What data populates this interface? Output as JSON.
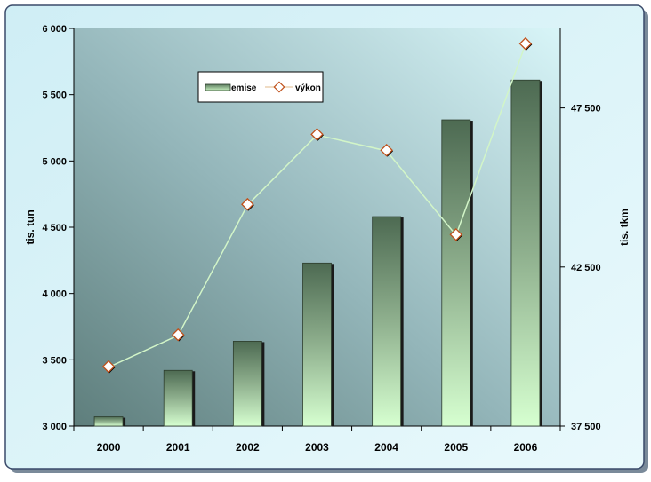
{
  "chart_data": {
    "type": "bar",
    "categories": [
      "2000",
      "2001",
      "2002",
      "2003",
      "2004",
      "2005",
      "2006"
    ],
    "series": [
      {
        "name": "emise",
        "type": "bar",
        "axis": "left",
        "values": [
          3070,
          3420,
          3640,
          4230,
          4580,
          5310,
          5610
        ]
      },
      {
        "name": "výkon",
        "type": "line",
        "axis": "right",
        "values": [
          39350,
          40350,
          44450,
          46650,
          46150,
          43500,
          49500
        ]
      }
    ],
    "ylabel": "tis. tun",
    "ylabel_right": "tis. tkm",
    "ylim": [
      3000,
      6000
    ],
    "ylim_right": [
      37500,
      50000
    ],
    "yticks": [
      "3 000",
      "3 500",
      "4 000",
      "4 500",
      "5 000",
      "5 500",
      "6 000"
    ],
    "yticks_right": [
      "37 500",
      "42 500",
      "47 500"
    ],
    "legend_position": "top-left",
    "grid": false
  }
}
